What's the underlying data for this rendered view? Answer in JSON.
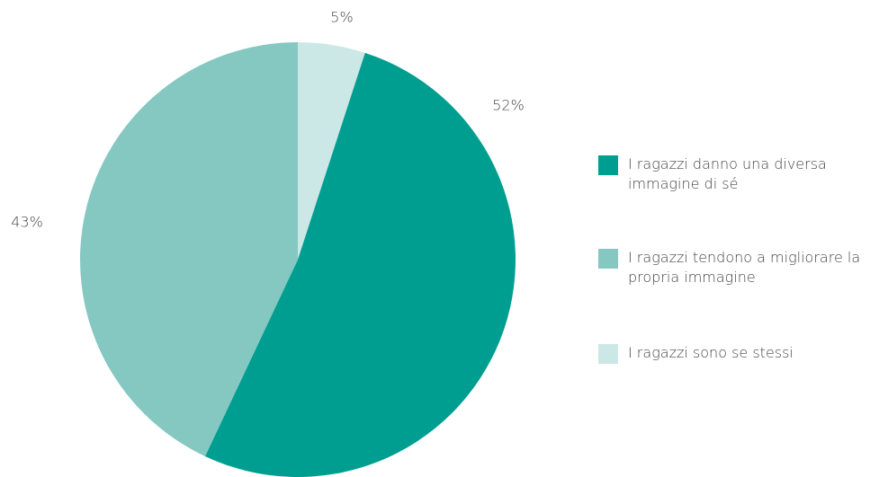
{
  "chart_data": {
    "type": "pie",
    "categories": [
      "I ragazzi danno una diversa immagine di sé",
      "I ragazzi tendono a migliorare la propria immagine",
      "I ragazzi sono se stessi"
    ],
    "values": [
      52,
      43,
      5
    ],
    "value_labels": [
      "52%",
      "43%",
      "5%"
    ],
    "colors": [
      "#009e91",
      "#84c8c1",
      "#cce8e6"
    ],
    "legend": "right"
  }
}
